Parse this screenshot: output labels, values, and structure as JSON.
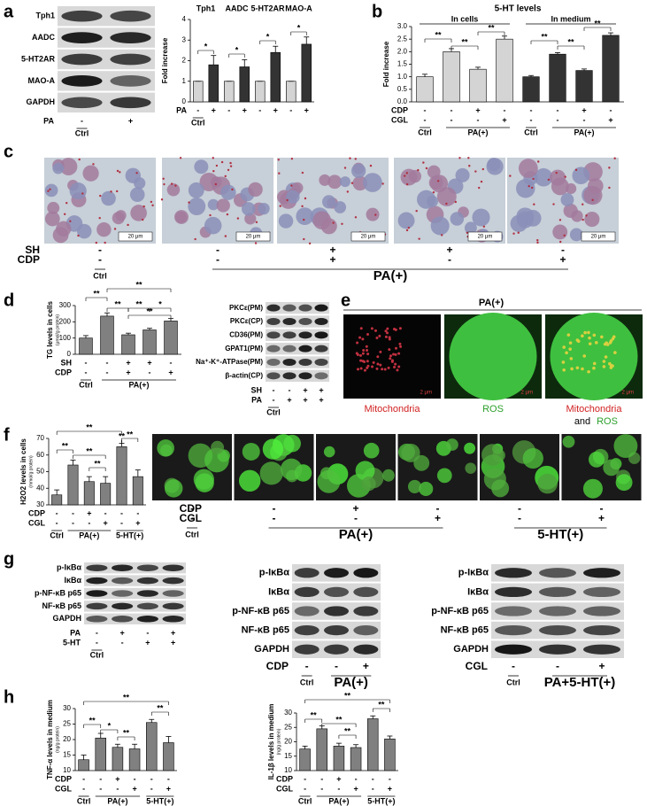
{
  "panel_labels": [
    "a",
    "b",
    "c",
    "d",
    "e",
    "f",
    "g",
    "h"
  ],
  "blots": [
    {
      "labels": [
        "Tph1",
        "AADC",
        "5-HT2AR",
        "MAO-A",
        "GAPDH"
      ],
      "rows": [
        {
          "name": "PA",
          "marks": [
            "-",
            "+"
          ]
        }
      ],
      "groups": [
        "Ctrl"
      ]
    },
    {
      "labels": [
        "PKCε(PM)",
        "PKCε(CP)",
        "CD36(PM)",
        "GPAT1(PM)",
        "Na⁺-K⁺-ATPase(PM)",
        "β-actin(CP)"
      ],
      "rows": [
        {
          "name": "SH",
          "marks": [
            "-",
            "-",
            "+",
            "+"
          ]
        },
        {
          "name": "PA",
          "marks": [
            "-",
            "+",
            "+",
            "+"
          ]
        }
      ],
      "groups": [
        "Ctrl"
      ]
    },
    {
      "labels": [
        "p-IκBα",
        "IκBα",
        "p-NF-κB p65",
        "NF-κB p65",
        "GAPDH"
      ],
      "rows": [
        {
          "name": "PA",
          "marks": [
            "-",
            "+",
            "-",
            "+"
          ]
        },
        {
          "name": "5-HT",
          "marks": [
            "-",
            "-",
            "+",
            "+"
          ]
        }
      ],
      "groups": [
        "Ctrl"
      ]
    },
    {
      "labels": [
        "p-IκBα",
        "IκBα",
        "p-NF-κB p65",
        "NF-κB p65",
        "GAPDH"
      ],
      "rows": [
        {
          "name": "CDP",
          "marks": [
            "-",
            "-",
            "+"
          ]
        }
      ],
      "groups": [
        "Ctrl",
        "PA(+)"
      ]
    },
    {
      "labels": [
        "p-IκBα",
        "IκBα",
        "p-NF-κB p65",
        "NF-κB p65",
        "GAPDH"
      ],
      "rows": [
        {
          "name": "CGL",
          "marks": [
            "-",
            "-",
            "+"
          ]
        }
      ],
      "groups": [
        "Ctrl",
        "PA+5-HT(+)"
      ]
    }
  ],
  "micrographs": [
    {
      "scale_bar": "20 μm",
      "rows": [
        {
          "name": "SH",
          "marks": [
            "-",
            "-",
            "+",
            "+",
            "-"
          ]
        },
        {
          "name": "CDP",
          "marks": [
            "-",
            "-",
            "+",
            "-",
            "+"
          ]
        }
      ],
      "groups": [
        "Ctrl",
        "PA(+)"
      ]
    },
    {
      "title": "PA(+)",
      "scale_bar": "2 μm",
      "captions": [
        "Mitochondria",
        "ROS",
        "Mitochondria",
        "and",
        "ROS"
      ]
    },
    {
      "rows": [
        {
          "name": "CDP",
          "marks": [
            "-",
            "-",
            "+",
            "-",
            "-",
            "-"
          ]
        },
        {
          "name": "CGL",
          "marks": [
            "-",
            "-",
            "-",
            "+",
            "-",
            "+"
          ]
        }
      ],
      "groups": [
        "Ctrl",
        "PA(+)",
        "5-HT(+)"
      ]
    }
  ],
  "chart_data": [
    {
      "type": "bar",
      "y_label": "Fold increase",
      "group_titles": [
        "Tph1",
        "AADC",
        "5-HT2AR",
        "MAO-A"
      ],
      "values": [
        1,
        1.8,
        1,
        1.7,
        1,
        2.4,
        1,
        2.8
      ],
      "errors": [
        0,
        0.45,
        0,
        0.35,
        0,
        0.3,
        0,
        0.35
      ],
      "colors": [
        "#d4d4d4",
        "#333333",
        "#d4d4d4",
        "#333333",
        "#d4d4d4",
        "#333333",
        "#d4d4d4",
        "#333333"
      ],
      "ylim": [
        0,
        4
      ],
      "yticks": [
        0,
        1,
        2,
        3,
        4
      ],
      "rows": [
        {
          "name": "PA",
          "marks": [
            "-",
            "+",
            "-",
            "+",
            "-",
            "+",
            "-",
            "+"
          ]
        }
      ],
      "groups": [
        "Ctrl"
      ],
      "significance": [
        "*",
        "*",
        "*",
        "*"
      ]
    },
    {
      "type": "bar",
      "title": "5-HT levels",
      "y_label": "Fold increase",
      "group_titles": [
        "In cells",
        "In medium"
      ],
      "values": [
        1,
        2,
        1.3,
        2.5,
        1,
        1.9,
        1.25,
        2.65
      ],
      "errors": [
        0.1,
        0.12,
        0.08,
        0.12,
        0.05,
        0.06,
        0.06,
        0.1
      ],
      "colors": [
        "#d4d4d4",
        "#d4d4d4",
        "#d4d4d4",
        "#d4d4d4",
        "#333333",
        "#333333",
        "#333333",
        "#333333"
      ],
      "ylim": [
        0,
        3
      ],
      "yticks": [
        {
          "value": 0,
          "label": "0.0"
        },
        {
          "value": 0.5,
          "label": "0.5"
        },
        {
          "value": 1,
          "label": "1.0"
        },
        {
          "value": 1.5,
          "label": "1.5"
        },
        {
          "value": 2,
          "label": "2.0"
        },
        {
          "value": 2.5,
          "label": "2.5"
        },
        {
          "value": 3,
          "label": "3.0"
        }
      ],
      "rows": [
        {
          "name": "CDP",
          "marks": [
            "-",
            "-",
            "+",
            "-",
            "-",
            "-",
            "+",
            "-"
          ]
        },
        {
          "name": "CGL",
          "marks": [
            "-",
            "-",
            "-",
            "+",
            "-",
            "-",
            "-",
            "+"
          ]
        }
      ],
      "groups": [
        "Ctrl",
        "PA(+)",
        "Ctrl",
        "PA(+)"
      ],
      "significance": [
        "**",
        "**",
        "**",
        "**",
        "**",
        "**"
      ]
    },
    {
      "type": "bar",
      "y_label": "TG levels in cells",
      "y_unit": "(μmol/g protein)",
      "values": [
        100,
        235,
        120,
        150,
        205
      ],
      "errors": [
        15,
        20,
        10,
        10,
        15
      ],
      "colors": [
        "#808080",
        "#808080",
        "#808080",
        "#808080",
        "#808080"
      ],
      "ylim": [
        0,
        300
      ],
      "yticks": [
        0,
        100,
        200,
        300
      ],
      "rows": [
        {
          "name": "SH",
          "marks": [
            "-",
            "-",
            "+",
            "+",
            "-"
          ]
        },
        {
          "name": "CDP",
          "marks": [
            "-",
            "-",
            "+",
            "-",
            "+"
          ]
        }
      ],
      "groups": [
        "Ctrl",
        "PA(+)"
      ],
      "significance": [
        "**",
        "**",
        "**",
        "*",
        "**",
        "**"
      ]
    },
    {
      "type": "bar",
      "y_label": "H2O2 levels in cells",
      "y_unit": "(mmol/g protein)",
      "values": [
        36,
        54,
        44,
        43,
        65,
        47
      ],
      "errors": [
        3,
        3,
        3,
        4,
        2,
        4
      ],
      "colors": [
        "#808080",
        "#808080",
        "#808080",
        "#808080",
        "#808080",
        "#808080"
      ],
      "ylim": [
        30,
        70
      ],
      "yticks": [
        30,
        40,
        50,
        60,
        70
      ],
      "rows": [
        {
          "name": "CDP",
          "marks": [
            "-",
            "-",
            "+",
            "-",
            "-",
            "-"
          ]
        },
        {
          "name": "CGL",
          "marks": [
            "-",
            "-",
            "-",
            "+",
            "-",
            "+"
          ]
        }
      ],
      "groups": [
        "Ctrl",
        "PA(+)",
        "5-HT(+)"
      ],
      "significance": [
        "**",
        "**",
        "**",
        "**",
        "**",
        "**"
      ]
    },
    {
      "type": "bar",
      "y_label": "TNF-α levels in medium",
      "y_unit": "(ng/g protein)",
      "values": [
        13.5,
        20.5,
        17.5,
        17,
        25.5,
        19
      ],
      "errors": [
        1.5,
        1.5,
        1,
        1.5,
        1,
        2
      ],
      "colors": [
        "#808080",
        "#808080",
        "#808080",
        "#808080",
        "#808080",
        "#808080"
      ],
      "ylim": [
        10,
        30
      ],
      "yticks": [
        10,
        15,
        20,
        25,
        30
      ],
      "rows": [
        {
          "name": "CDP",
          "marks": [
            "-",
            "-",
            "+",
            "-",
            "-",
            "-"
          ]
        },
        {
          "name": "CGL",
          "marks": [
            "-",
            "-",
            "-",
            "+",
            "-",
            "+"
          ]
        }
      ],
      "groups": [
        "Ctrl",
        "PA(+)",
        "5-HT(+)"
      ],
      "significance": [
        "**",
        "*",
        "**",
        "**",
        "**"
      ]
    },
    {
      "type": "bar",
      "y_label": "IL-1β levels in medium",
      "y_unit": "(ng/g protein)",
      "values": [
        17.5,
        24.5,
        18.5,
        18,
        28,
        21
      ],
      "errors": [
        1,
        1,
        1,
        1,
        1,
        1
      ],
      "colors": [
        "#808080",
        "#808080",
        "#808080",
        "#808080",
        "#808080",
        "#808080"
      ],
      "ylim": [
        10,
        30
      ],
      "yticks": [
        10,
        15,
        20,
        25,
        30
      ],
      "rows": [
        {
          "name": "CDP",
          "marks": [
            "-",
            "-",
            "+",
            "-",
            "-",
            "-"
          ]
        },
        {
          "name": "CGL",
          "marks": [
            "-",
            "-",
            "-",
            "+",
            "-",
            "+"
          ]
        }
      ],
      "groups": [
        "Ctrl",
        "PA(+)",
        "5-HT(+)"
      ],
      "significance": [
        "**",
        "**",
        "**",
        "**",
        "**"
      ]
    }
  ]
}
